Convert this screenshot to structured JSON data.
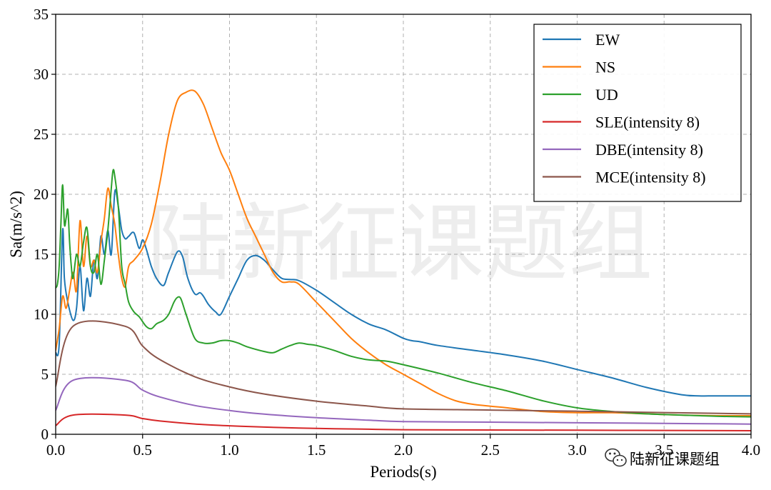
{
  "watermark_text": "陆新征课题组",
  "corner_logo_text": "陆新征课题组",
  "colors": {
    "EW": "#1f77b4",
    "NS": "#ff7f0e",
    "UD": "#2ca02c",
    "SLE": "#d62728",
    "DBE": "#9467bd",
    "MCE": "#8c564b"
  },
  "chart_data": {
    "type": "line",
    "title": "",
    "xlabel": "Periods(s)",
    "ylabel": "Sa(m/s^2)",
    "xlim": [
      0,
      4.0
    ],
    "ylim": [
      0,
      35
    ],
    "xticks": [
      0.0,
      0.5,
      1.0,
      1.5,
      2.0,
      2.5,
      3.0,
      3.5,
      4.0
    ],
    "xtick_labels": [
      "0.0",
      "0.5",
      "1.0",
      "1.5",
      "2.0",
      "2.5",
      "3.0",
      "3.5",
      "4.0"
    ],
    "yticks": [
      0,
      5,
      10,
      15,
      20,
      25,
      30,
      35
    ],
    "ytick_labels": [
      "0",
      "5",
      "10",
      "15",
      "20",
      "25",
      "30",
      "35"
    ],
    "grid": true,
    "legend_position": "top-right",
    "series": [
      {
        "name": "EW",
        "color": "#1f77b4",
        "x": [
          0,
          0.02,
          0.04,
          0.05,
          0.07,
          0.1,
          0.12,
          0.14,
          0.16,
          0.18,
          0.2,
          0.22,
          0.24,
          0.26,
          0.28,
          0.3,
          0.32,
          0.34,
          0.36,
          0.38,
          0.4,
          0.42,
          0.45,
          0.48,
          0.5,
          0.52,
          0.55,
          0.58,
          0.62,
          0.65,
          0.7,
          0.73,
          0.76,
          0.8,
          0.83,
          0.85,
          0.88,
          0.92,
          0.95,
          1.0,
          1.05,
          1.1,
          1.15,
          1.2,
          1.25,
          1.3,
          1.35,
          1.4,
          1.5,
          1.6,
          1.7,
          1.8,
          1.9,
          2.0,
          2.05,
          2.1,
          2.2,
          2.4,
          2.6,
          2.8,
          3.0,
          3.2,
          3.4,
          3.6,
          3.7,
          3.8,
          4.0
        ],
        "y": [
          6.8,
          7.5,
          17.0,
          13.0,
          11.0,
          9.5,
          10.5,
          14.0,
          10.3,
          13.0,
          11.5,
          14.5,
          13.0,
          16.5,
          15.0,
          17.0,
          15.0,
          20.2,
          19.0,
          17.0,
          16.3,
          16.5,
          16.8,
          15.5,
          16.2,
          15.5,
          14.0,
          13.0,
          12.4,
          13.5,
          15.2,
          14.8,
          13.0,
          11.7,
          11.8,
          11.5,
          10.8,
          10.2,
          10.0,
          11.5,
          13.0,
          14.5,
          14.9,
          14.5,
          13.7,
          13.0,
          12.9,
          12.8,
          12.0,
          11.0,
          10.0,
          9.2,
          8.7,
          8.0,
          7.8,
          7.7,
          7.4,
          7.0,
          6.6,
          6.1,
          5.4,
          4.7,
          3.9,
          3.3,
          3.2,
          3.2,
          3.2
        ]
      },
      {
        "name": "NS",
        "color": "#ff7f0e",
        "x": [
          0,
          0.02,
          0.04,
          0.06,
          0.08,
          0.1,
          0.12,
          0.14,
          0.16,
          0.18,
          0.2,
          0.22,
          0.24,
          0.26,
          0.28,
          0.3,
          0.32,
          0.34,
          0.36,
          0.38,
          0.4,
          0.42,
          0.45,
          0.5,
          0.55,
          0.6,
          0.65,
          0.7,
          0.75,
          0.8,
          0.85,
          0.9,
          0.95,
          1.0,
          1.05,
          1.1,
          1.15,
          1.2,
          1.25,
          1.3,
          1.35,
          1.4,
          1.5,
          1.6,
          1.7,
          1.8,
          1.9,
          2.0,
          2.1,
          2.2,
          2.3,
          2.4,
          2.6,
          2.8,
          3.0,
          3.2,
          3.4,
          3.6,
          3.8,
          4.0
        ],
        "y": [
          7.0,
          8.8,
          11.5,
          10.5,
          12.0,
          13.5,
          12.0,
          17.8,
          14.0,
          16.5,
          14.0,
          14.5,
          13.5,
          16.0,
          18.0,
          20.5,
          19.0,
          17.5,
          15.0,
          13.0,
          12.3,
          14.0,
          14.5,
          15.5,
          17.5,
          21.0,
          25.0,
          27.8,
          28.5,
          28.6,
          27.5,
          25.5,
          23.5,
          22.0,
          20.0,
          18.0,
          16.5,
          15.0,
          13.5,
          12.7,
          12.7,
          12.5,
          11.0,
          9.5,
          8.0,
          6.8,
          5.8,
          5.0,
          4.2,
          3.4,
          2.8,
          2.5,
          2.2,
          1.9,
          1.8,
          1.8,
          1.7,
          1.6,
          1.55,
          1.55
        ]
      },
      {
        "name": "UD",
        "color": "#2ca02c",
        "x": [
          0,
          0.01,
          0.02,
          0.03,
          0.04,
          0.05,
          0.06,
          0.07,
          0.08,
          0.09,
          0.1,
          0.12,
          0.14,
          0.16,
          0.18,
          0.2,
          0.22,
          0.24,
          0.26,
          0.28,
          0.3,
          0.32,
          0.33,
          0.34,
          0.36,
          0.38,
          0.4,
          0.42,
          0.45,
          0.48,
          0.52,
          0.55,
          0.58,
          0.62,
          0.65,
          0.68,
          0.7,
          0.72,
          0.75,
          0.8,
          0.85,
          0.9,
          0.95,
          1.0,
          1.05,
          1.1,
          1.2,
          1.25,
          1.3,
          1.35,
          1.4,
          1.45,
          1.5,
          1.6,
          1.7,
          1.8,
          1.9,
          2.0,
          2.2,
          2.4,
          2.6,
          2.8,
          3.0,
          3.2,
          3.4,
          3.6,
          3.8,
          4.0
        ],
        "y": [
          12.2,
          12.5,
          14.0,
          17.5,
          20.8,
          17.5,
          18.0,
          18.7,
          16.0,
          14.0,
          13.0,
          15.0,
          14.0,
          16.0,
          17.2,
          14.0,
          13.5,
          15.0,
          12.5,
          14.5,
          17.0,
          20.5,
          22.0,
          21.5,
          19.0,
          14.0,
          12.5,
          11.0,
          10.2,
          9.8,
          9.0,
          8.8,
          9.2,
          9.5,
          10.0,
          11.0,
          11.4,
          11.3,
          10.0,
          8.0,
          7.6,
          7.6,
          7.8,
          7.8,
          7.6,
          7.3,
          6.9,
          6.8,
          7.1,
          7.4,
          7.6,
          7.5,
          7.4,
          7.0,
          6.5,
          6.2,
          6.1,
          5.8,
          5.1,
          4.3,
          3.6,
          2.8,
          2.2,
          1.9,
          1.7,
          1.6,
          1.5,
          1.45
        ]
      },
      {
        "name": "SLE(intensity 8)",
        "color": "#d62728",
        "x": [
          0,
          0.1,
          0.4,
          0.5,
          0.6,
          0.8,
          1.0,
          1.2,
          1.5,
          1.8,
          2.0,
          2.5,
          3.0,
          3.5,
          4.0
        ],
        "y": [
          0.72,
          1.6,
          1.6,
          1.31,
          1.11,
          0.86,
          0.71,
          0.6,
          0.49,
          0.42,
          0.38,
          0.36,
          0.34,
          0.32,
          0.3
        ]
      },
      {
        "name": "DBE(intensity 8)",
        "color": "#9467bd",
        "x": [
          0,
          0.1,
          0.4,
          0.5,
          0.6,
          0.8,
          1.0,
          1.2,
          1.5,
          1.8,
          2.0,
          2.5,
          3.0,
          3.5,
          4.0
        ],
        "y": [
          2.0,
          4.5,
          4.5,
          3.68,
          3.11,
          2.4,
          1.98,
          1.68,
          1.38,
          1.17,
          1.06,
          1.01,
          0.96,
          0.91,
          0.85
        ]
      },
      {
        "name": "MCE(intensity 8)",
        "color": "#8c564b",
        "x": [
          0,
          0.1,
          0.4,
          0.5,
          0.6,
          0.8,
          1.0,
          1.2,
          1.5,
          1.8,
          2.0,
          2.5,
          3.0,
          3.5,
          4.0
        ],
        "y": [
          4.0,
          9.0,
          9.0,
          7.35,
          6.22,
          4.8,
          3.95,
          3.36,
          2.76,
          2.35,
          2.12,
          2.02,
          1.92,
          1.81,
          1.7
        ]
      }
    ]
  }
}
